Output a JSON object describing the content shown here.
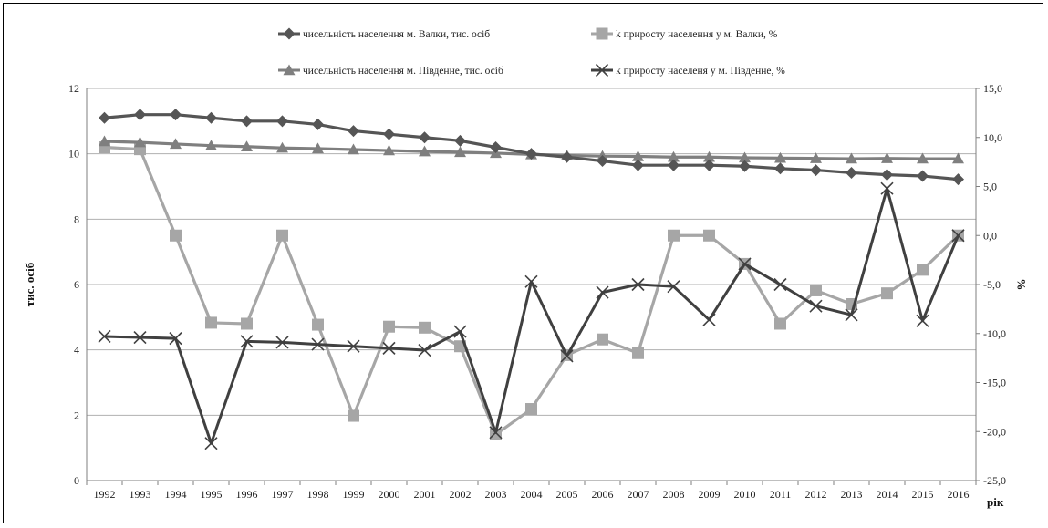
{
  "chart_data": {
    "type": "line",
    "xlabel": "рік",
    "ylabel_left": "тис. осіб",
    "ylabel_right": "%",
    "y_left": {
      "lim": [
        0,
        12
      ],
      "ticks": [
        0,
        2,
        4,
        6,
        8,
        10,
        12
      ]
    },
    "y_right": {
      "lim": [
        -25,
        15
      ],
      "ticks": [
        "-25,0",
        "-20,0",
        "-15,0",
        "-10,0",
        "-5,0",
        "0,0",
        "5,0",
        "10,0",
        "15,0"
      ]
    },
    "grid": "horizontal",
    "legend_position": "top",
    "categories": [
      "1992",
      "1993",
      "1994",
      "1995",
      "1996",
      "1997",
      "1998",
      "1999",
      "2000",
      "2001",
      "2002",
      "2003",
      "2004",
      "2005",
      "2006",
      "2007",
      "2008",
      "2009",
      "2010",
      "2011",
      "2012",
      "2013",
      "2014",
      "2015",
      "2016"
    ],
    "series": [
      {
        "name": "чисельність населення м. Валки, тис. осіб",
        "axis": "left",
        "marker": "diamond",
        "color": "#555555",
        "values": [
          11.1,
          11.2,
          11.2,
          11.1,
          11.0,
          11.0,
          10.9,
          10.7,
          10.6,
          10.5,
          10.4,
          10.2,
          10.0,
          9.9,
          9.78,
          9.65,
          9.65,
          9.65,
          9.62,
          9.55,
          9.5,
          9.42,
          9.36,
          9.32,
          9.22
        ]
      },
      {
        "name": "k приросту населення у м. Валки, %",
        "axis": "right",
        "marker": "square",
        "color": "#a6a6a6",
        "values": [
          9.0,
          8.8,
          0.0,
          -8.9,
          -9.0,
          0.0,
          -9.1,
          -18.4,
          -9.3,
          -9.4,
          -11.3,
          -20.3,
          -17.7,
          -12.2,
          -10.6,
          -12.0,
          0.0,
          0.0,
          -2.9,
          -9.0,
          -5.6,
          -7.0,
          -5.9,
          -3.5,
          0.0
        ]
      },
      {
        "name": "чисельність населення м. Південне, тис. осіб",
        "axis": "left",
        "marker": "triangle",
        "color": "#7f7f7f",
        "values": [
          10.38,
          10.35,
          10.3,
          10.25,
          10.22,
          10.18,
          10.16,
          10.13,
          10.1,
          10.07,
          10.05,
          10.02,
          9.98,
          9.95,
          9.93,
          9.92,
          9.9,
          9.9,
          9.88,
          9.87,
          9.86,
          9.85,
          9.86,
          9.85,
          9.85
        ]
      },
      {
        "name": "k приросту населеня у м. Південне, %",
        "axis": "right",
        "marker": "x",
        "color": "#404040",
        "values": [
          -10.3,
          -10.4,
          -10.5,
          -21.2,
          -10.8,
          -10.9,
          -11.1,
          -11.3,
          -11.5,
          -11.7,
          -9.8,
          -20.1,
          -4.7,
          -12.3,
          -5.8,
          -5.0,
          -5.2,
          -8.6,
          -2.9,
          -5.0,
          -7.2,
          -8.1,
          4.8,
          -8.7,
          0.0
        ]
      }
    ]
  }
}
